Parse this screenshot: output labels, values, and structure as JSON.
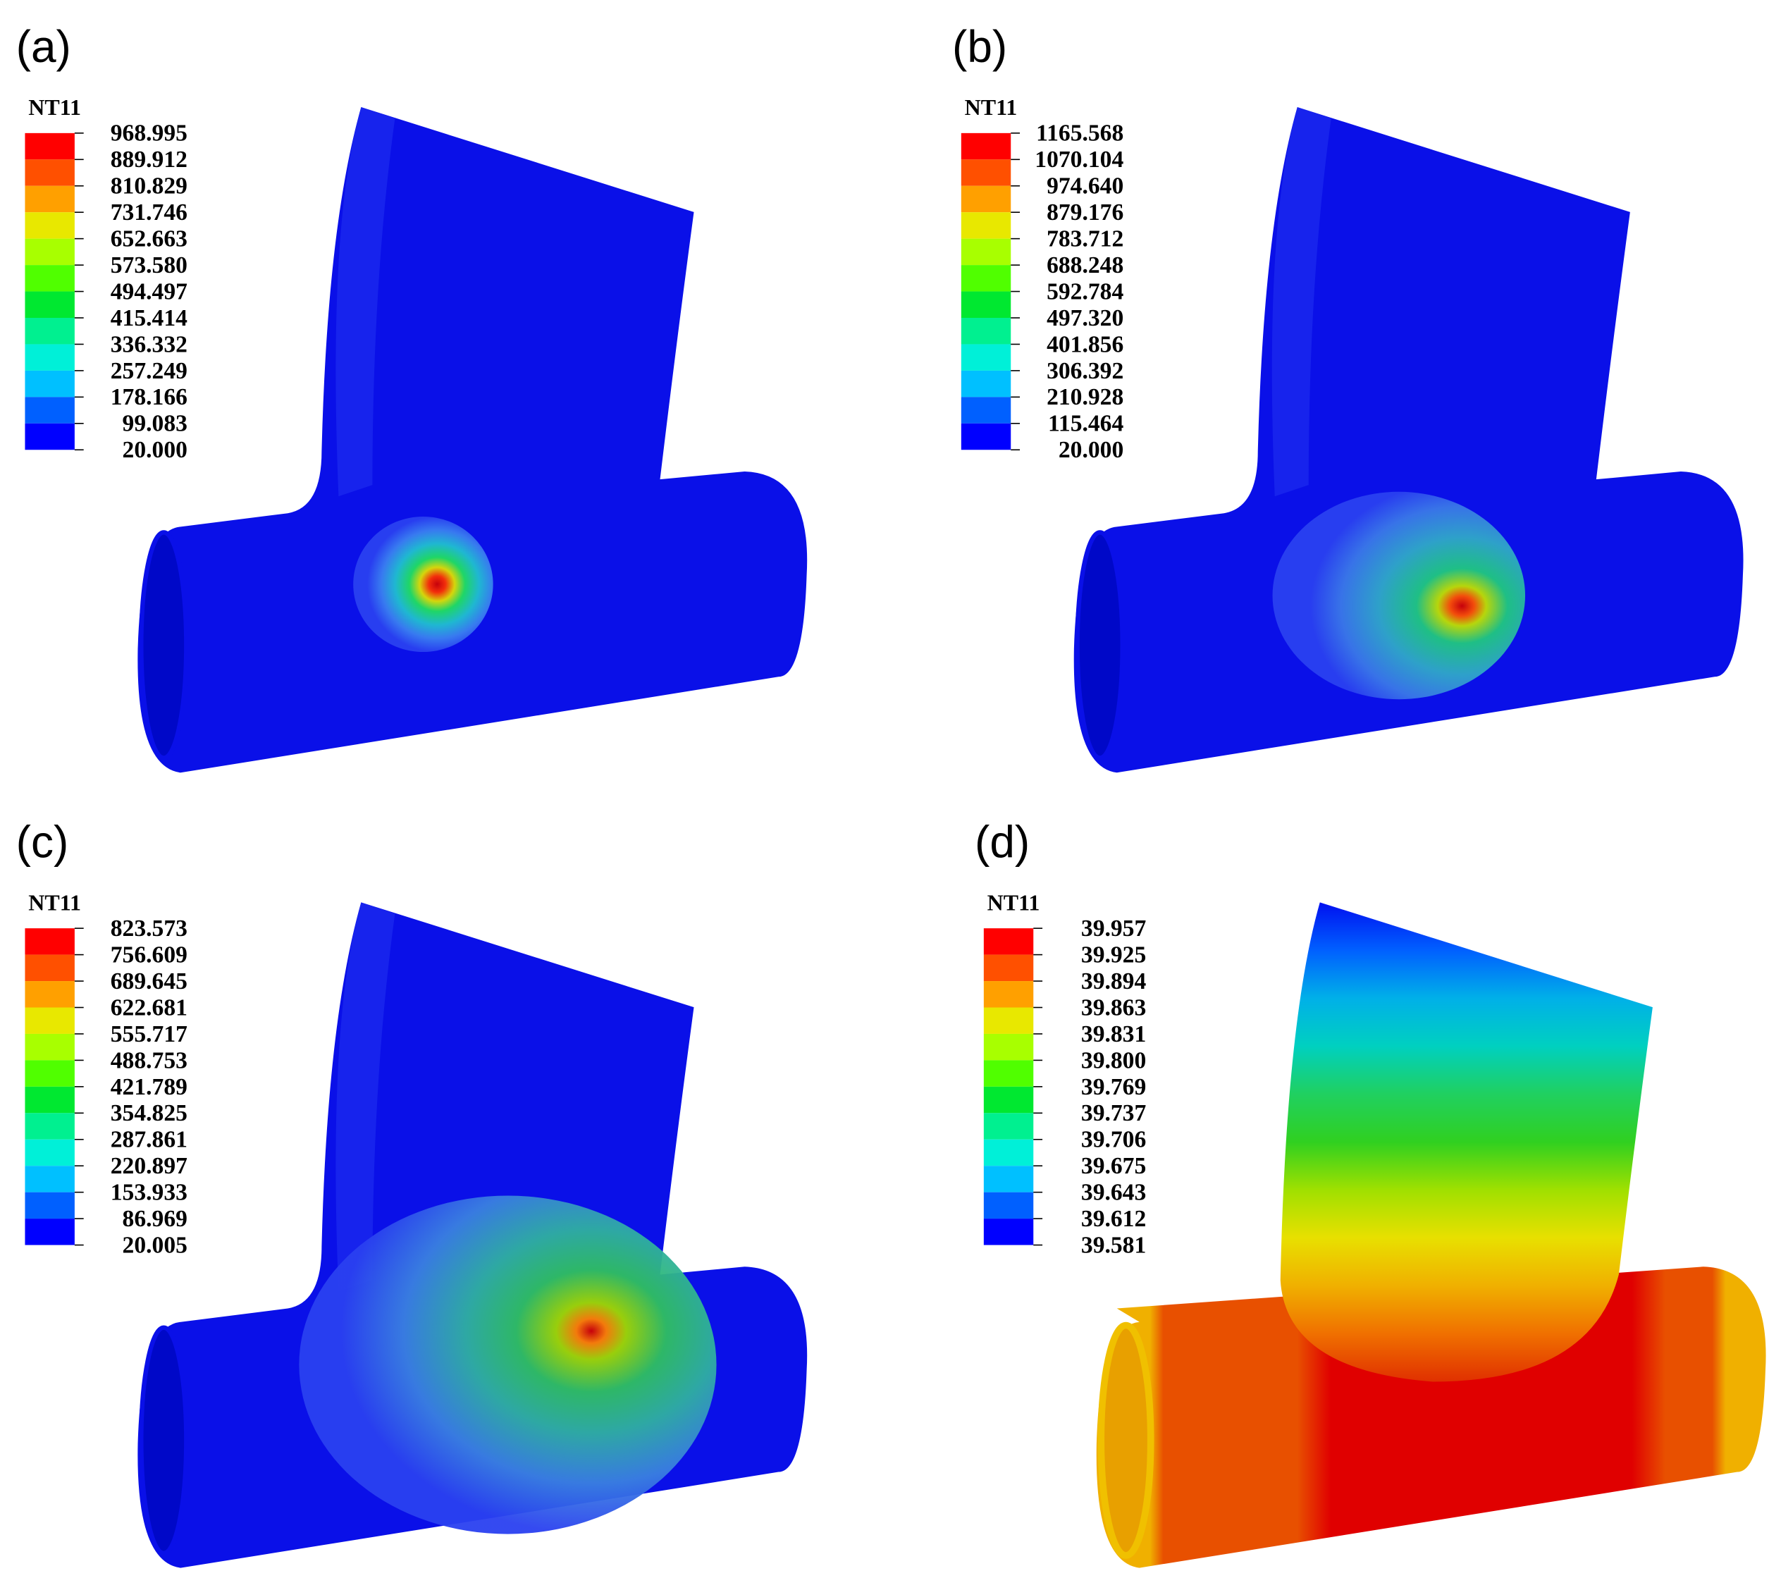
{
  "panels": [
    {
      "label": "(a)",
      "legend": {
        "title": "NT11",
        "values": [
          "968.995",
          "889.912",
          "810.829",
          "731.746",
          "652.663",
          "573.580",
          "494.497",
          "415.414",
          "336.332",
          "257.249",
          "178.166",
          "99.083",
          "20.000"
        ]
      }
    },
    {
      "label": "(b)",
      "legend": {
        "title": "NT11",
        "values": [
          "1165.568",
          "1070.104",
          "974.640",
          "879.176",
          "783.712",
          "688.248",
          "592.784",
          "497.320",
          "401.856",
          "306.392",
          "210.928",
          "115.464",
          "20.000"
        ]
      }
    },
    {
      "label": "(c)",
      "legend": {
        "title": "NT11",
        "values": [
          "823.573",
          "756.609",
          "689.645",
          "622.681",
          "555.717",
          "488.753",
          "421.789",
          "354.825",
          "287.861",
          "220.897",
          "153.933",
          "86.969",
          "20.005"
        ]
      }
    },
    {
      "label": "(d)",
      "legend": {
        "title": "NT11",
        "values": [
          "39.957",
          "39.925",
          "39.894",
          "39.863",
          "39.831",
          "39.800",
          "39.769",
          "39.737",
          "39.706",
          "39.675",
          "39.643",
          "39.612",
          "39.581"
        ]
      }
    }
  ]
}
